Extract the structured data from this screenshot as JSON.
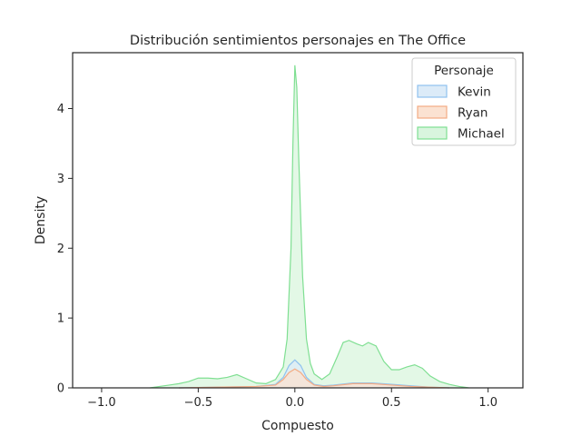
{
  "chart_data": {
    "type": "area",
    "title": "Distribución sentimientos personajes en The Office",
    "xlabel": "Compuesto",
    "ylabel": "Density",
    "xlim": [
      -1.15,
      1.18
    ],
    "ylim": [
      0,
      4.8
    ],
    "x_ticks": [
      -1.0,
      -0.5,
      0.0,
      0.5,
      1.0
    ],
    "x_tick_labels": [
      "−1.0",
      "−0.5",
      "0.0",
      "0.5",
      "1.0"
    ],
    "y_ticks": [
      0,
      1,
      2,
      3,
      4
    ],
    "y_tick_labels": [
      "0",
      "1",
      "2",
      "3",
      "4"
    ],
    "grid": false,
    "legend": {
      "title": "Personaje",
      "placement": "top-right"
    },
    "series": [
      {
        "name": "Michael",
        "color": "#7fdf92",
        "fill": "#d9f5de",
        "x": [
          -0.75,
          -0.65,
          -0.6,
          -0.55,
          -0.5,
          -0.45,
          -0.4,
          -0.35,
          -0.3,
          -0.25,
          -0.2,
          -0.15,
          -0.1,
          -0.06,
          -0.04,
          -0.02,
          -0.01,
          0.0,
          0.01,
          0.02,
          0.04,
          0.06,
          0.08,
          0.1,
          0.14,
          0.18,
          0.22,
          0.25,
          0.28,
          0.32,
          0.35,
          0.38,
          0.42,
          0.46,
          0.5,
          0.54,
          0.58,
          0.62,
          0.66,
          0.7,
          0.75,
          0.8,
          0.85,
          0.9
        ],
        "values": [
          0.0,
          0.04,
          0.06,
          0.09,
          0.14,
          0.14,
          0.13,
          0.15,
          0.19,
          0.13,
          0.07,
          0.06,
          0.12,
          0.3,
          0.7,
          2.0,
          3.5,
          4.62,
          4.3,
          3.3,
          1.6,
          0.7,
          0.35,
          0.2,
          0.12,
          0.2,
          0.45,
          0.65,
          0.68,
          0.63,
          0.6,
          0.65,
          0.6,
          0.38,
          0.26,
          0.26,
          0.3,
          0.33,
          0.28,
          0.17,
          0.09,
          0.05,
          0.02,
          0.0
        ]
      },
      {
        "name": "Kevin",
        "color": "#8fc2ef",
        "fill": "#dcebf8",
        "x": [
          -0.6,
          -0.4,
          -0.2,
          -0.1,
          -0.06,
          -0.03,
          0.0,
          0.03,
          0.06,
          0.1,
          0.15,
          0.2,
          0.3,
          0.4,
          0.5,
          0.6,
          0.7,
          0.8
        ],
        "values": [
          0.0,
          0.01,
          0.02,
          0.05,
          0.15,
          0.32,
          0.4,
          0.32,
          0.15,
          0.05,
          0.03,
          0.04,
          0.07,
          0.07,
          0.05,
          0.03,
          0.01,
          0.0
        ]
      },
      {
        "name": "Ryan",
        "color": "#f4ac84",
        "fill": "#fbe2d2",
        "x": [
          -0.6,
          -0.4,
          -0.2,
          -0.1,
          -0.06,
          -0.03,
          0.0,
          0.03,
          0.06,
          0.1,
          0.15,
          0.2,
          0.3,
          0.4,
          0.5,
          0.6,
          0.7,
          0.8
        ],
        "values": [
          0.0,
          0.01,
          0.02,
          0.04,
          0.12,
          0.22,
          0.27,
          0.22,
          0.12,
          0.04,
          0.02,
          0.03,
          0.06,
          0.06,
          0.04,
          0.02,
          0.01,
          0.0
        ]
      }
    ],
    "legend_order": [
      "Kevin",
      "Ryan",
      "Michael"
    ]
  }
}
